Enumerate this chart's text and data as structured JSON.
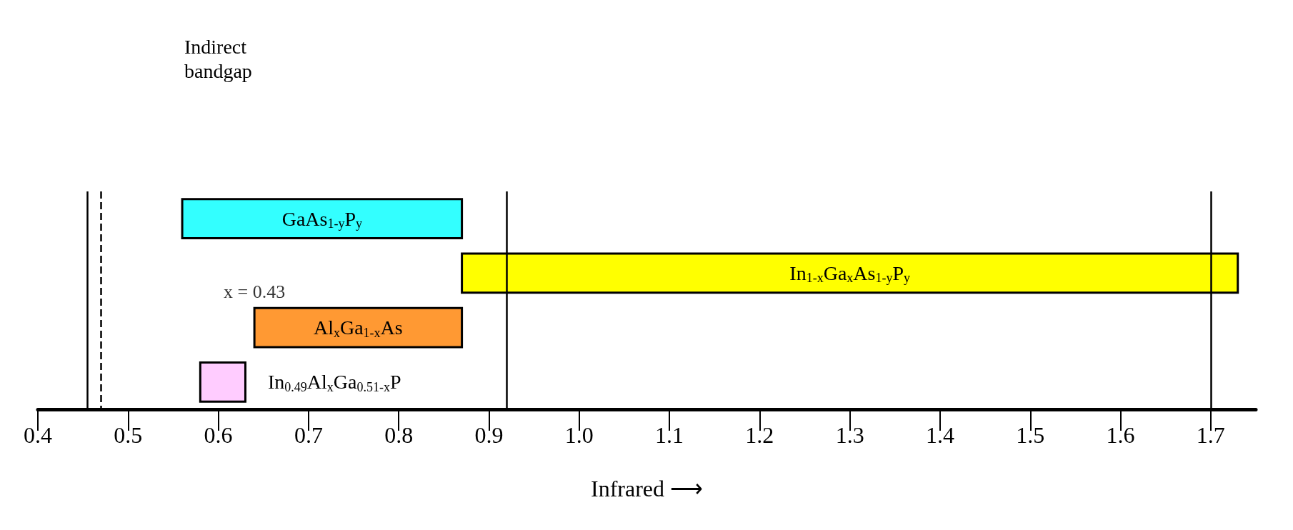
{
  "chart_data": {
    "type": "bar",
    "orientation": "horizontal",
    "xlabel": "Infrared ⟶",
    "categories": [
      "GaAs$_{1-y}$P$_{y}$",
      "In$_{1-x}$Ga$_{x}$As$_{1-y}$P$_{y}$",
      "Al$_{x}$Ga$_{1-x}$As",
      "In$_{0.49}$Al$_{x}$Ga$_{0.51-x}$P"
    ],
    "base": [
      0.56,
      0.87,
      0.64,
      0.58
    ],
    "values": [
      0.31,
      0.86,
      0.23,
      0.05
    ],
    "colors": [
      "#33ffff",
      "#ffff00",
      "#ff9933",
      "#ffccff"
    ],
    "xlim": [
      0.4,
      1.75
    ],
    "xticks": [
      0.4,
      0.5,
      0.6,
      0.7,
      0.8,
      0.9,
      {
        "value": 1,
        "label": "1.0"
      },
      1.1,
      1.2,
      1.3,
      1.4,
      1.5,
      1.6,
      1.7
    ],
    "ref_lines": [
      {
        "axis": "x",
        "value": 0.455
      },
      {
        "axis": "x",
        "value": 0.47,
        "line_style": "dashed"
      },
      {
        "axis": "x",
        "value": 0.92
      },
      {
        "axis": "x",
        "value": 1.7
      }
    ],
    "annotations": [
      "Indirect\nbandgap",
      {
        "text": "x = 0.43",
        "x": 0.64,
        "y": "Al$_{x}$Ga$_{1-x}$As"
      }
    ],
    "tick_labels": "x",
    "grid": false
  }
}
